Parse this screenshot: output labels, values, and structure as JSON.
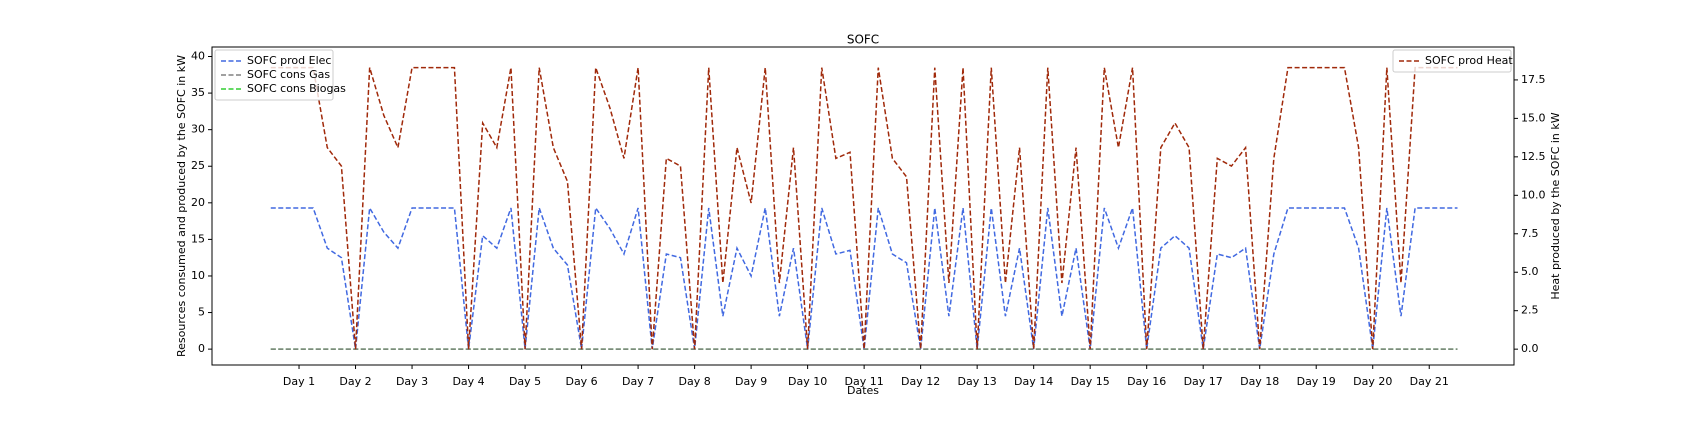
{
  "chart_data": {
    "type": "line",
    "title": "SOFC",
    "xlabel": "Dates",
    "ylabel": "Resources consumed and produced by the SOFC in kW",
    "y2label": "Heat produced by the SOFC in kW",
    "x": [
      0.5,
      0.75,
      1,
      1.25,
      1.5,
      1.75,
      2,
      2.25,
      2.5,
      2.75,
      3,
      3.25,
      3.5,
      3.75,
      4,
      4.25,
      4.5,
      4.75,
      5,
      5.25,
      5.5,
      5.75,
      6,
      6.25,
      6.5,
      6.75,
      7,
      7.25,
      7.5,
      7.75,
      8,
      8.25,
      8.5,
      8.75,
      9,
      9.25,
      9.5,
      9.75,
      10,
      10.25,
      10.5,
      10.75,
      11,
      11.25,
      11.5,
      11.75,
      12,
      12.25,
      12.5,
      12.75,
      13,
      13.25,
      13.5,
      13.75,
      14,
      14.25,
      14.5,
      14.75,
      15,
      15.25,
      15.5,
      15.75,
      16,
      16.25,
      16.5,
      16.75,
      17,
      17.25,
      17.5,
      17.75,
      18,
      18.25,
      18.5,
      18.75,
      19,
      19.25,
      19.5,
      19.75,
      20,
      20.25,
      20.5,
      20.75,
      21,
      21.25,
      21.5
    ],
    "series": [
      {
        "name": "SOFC prod Elec",
        "color": "#4169e1",
        "values": [
          19.3,
          19.3,
          19.3,
          19.3,
          13.8,
          12.5,
          0,
          19.3,
          16,
          13.8,
          19.3,
          19.3,
          19.3,
          19.3,
          0,
          15.5,
          13.8,
          19.3,
          0,
          19.3,
          13.8,
          11.5,
          0,
          19.3,
          16.5,
          13,
          19.3,
          0,
          13,
          12.5,
          0,
          19.3,
          4.5,
          13.8,
          10,
          19.3,
          4.5,
          13.8,
          0,
          19.3,
          13,
          13.5,
          0,
          19.3,
          13,
          11.8,
          0,
          19.3,
          4.5,
          19.3,
          0,
          19.3,
          4.5,
          13.8,
          0,
          19.3,
          4.5,
          13.8,
          0,
          19.3,
          13.8,
          19.3,
          0,
          13.8,
          15.5,
          13.8,
          0,
          13,
          12.5,
          13.8,
          0,
          13,
          19.3,
          19.3,
          19.3,
          19.3,
          19.3,
          13.8,
          0,
          19.3,
          4.5,
          19.3,
          19.3,
          19.3,
          19.3
        ]
      },
      {
        "name": "SOFC cons Gas",
        "color": "#808080",
        "values": [
          0,
          0,
          0,
          0,
          0,
          0,
          0,
          0,
          0,
          0,
          0,
          0,
          0,
          0,
          0,
          0,
          0,
          0,
          0,
          0,
          0,
          0,
          0,
          0,
          0,
          0,
          0,
          0,
          0,
          0,
          0,
          0,
          0,
          0,
          0,
          0,
          0,
          0,
          0,
          0,
          0,
          0,
          0,
          0,
          0,
          0,
          0,
          0,
          0,
          0,
          0,
          0,
          0,
          0,
          0,
          0,
          0,
          0,
          0,
          0,
          0,
          0,
          0,
          0,
          0,
          0,
          0,
          0,
          0,
          0,
          0,
          0,
          0,
          0,
          0,
          0,
          0,
          0,
          0,
          0,
          0,
          0,
          0,
          0,
          0
        ]
      },
      {
        "name": "SOFC cons Biogas",
        "color": "#32cd32",
        "values": [
          0,
          0,
          0,
          0,
          0,
          0,
          0,
          0,
          0,
          0,
          0,
          0,
          0,
          0,
          0,
          0,
          0,
          0,
          0,
          0,
          0,
          0,
          0,
          0,
          0,
          0,
          0,
          0,
          0,
          0,
          0,
          0,
          0,
          0,
          0,
          0,
          0,
          0,
          0,
          0,
          0,
          0,
          0,
          0,
          0,
          0,
          0,
          0,
          0,
          0,
          0,
          0,
          0,
          0,
          0,
          0,
          0,
          0,
          0,
          0,
          0,
          0,
          0,
          0,
          0,
          0,
          0,
          0,
          0,
          0,
          0,
          0,
          0,
          0,
          0,
          0,
          0,
          0,
          0,
          0,
          0,
          0,
          0,
          0,
          0
        ]
      },
      {
        "name": "SOFC prod Heat",
        "color": "#a0290a",
        "axis": "y2",
        "values": [
          18.3,
          18.3,
          18.3,
          18.3,
          13.1,
          11.9,
          0,
          18.3,
          15.2,
          13.1,
          18.3,
          18.3,
          18.3,
          18.3,
          0,
          14.7,
          13.1,
          18.3,
          0,
          18.3,
          13.1,
          10.9,
          0,
          18.3,
          15.7,
          12.4,
          18.3,
          0,
          12.4,
          11.9,
          0,
          18.3,
          4.3,
          13.1,
          9.5,
          18.3,
          4.3,
          13.1,
          0,
          18.3,
          12.4,
          12.8,
          0,
          18.3,
          12.4,
          11.2,
          0,
          18.3,
          4.3,
          18.3,
          0,
          18.3,
          4.3,
          13.1,
          0,
          18.3,
          4.3,
          13.1,
          0,
          18.3,
          13.1,
          18.3,
          0,
          13.1,
          14.7,
          13.1,
          0,
          12.4,
          11.9,
          13.1,
          0,
          12.4,
          18.3,
          18.3,
          18.3,
          18.3,
          18.3,
          13.1,
          0,
          18.3,
          4.3,
          18.3,
          18.3,
          18.3,
          18.3
        ]
      }
    ],
    "xlim": [
      -0.54,
      22.5
    ],
    "xticks": [
      {
        "value": 1,
        "label": "Day 1"
      },
      {
        "value": 2,
        "label": "Day 2"
      },
      {
        "value": 3,
        "label": "Day 3"
      },
      {
        "value": 4,
        "label": "Day 4"
      },
      {
        "value": 5,
        "label": "Day 5"
      },
      {
        "value": 6,
        "label": "Day 6"
      },
      {
        "value": 7,
        "label": "Day 7"
      },
      {
        "value": 8,
        "label": "Day 8"
      },
      {
        "value": 9,
        "label": "Day 9"
      },
      {
        "value": 10,
        "label": "Day 10"
      },
      {
        "value": 11,
        "label": "Day 11"
      },
      {
        "value": 12,
        "label": "Day 12"
      },
      {
        "value": 13,
        "label": "Day 13"
      },
      {
        "value": 14,
        "label": "Day 14"
      },
      {
        "value": 15,
        "label": "Day 15"
      },
      {
        "value": 16,
        "label": "Day 16"
      },
      {
        "value": 17,
        "label": "Day 17"
      },
      {
        "value": 18,
        "label": "Day 18"
      },
      {
        "value": 19,
        "label": "Day 19"
      },
      {
        "value": 20,
        "label": "Day 20"
      },
      {
        "value": 21,
        "label": "Day 21"
      }
    ],
    "ylim": [
      -2.17,
      41.3
    ],
    "yticks": [
      0,
      5,
      10,
      15,
      20,
      25,
      30,
      35,
      40
    ],
    "y2lim": [
      -1.03,
      19.64
    ],
    "y2ticks": [
      {
        "value": 0,
        "label": "0.0"
      },
      2.5,
      {
        "value": 5,
        "label": "5.0"
      },
      7.5,
      {
        "value": 10,
        "label": "10.0"
      },
      12.5,
      {
        "value": 15,
        "label": "15.0"
      },
      17.5
    ],
    "grid": false,
    "line_style": "dashed",
    "legend": "upper left",
    "legend_y2": "upper right"
  }
}
